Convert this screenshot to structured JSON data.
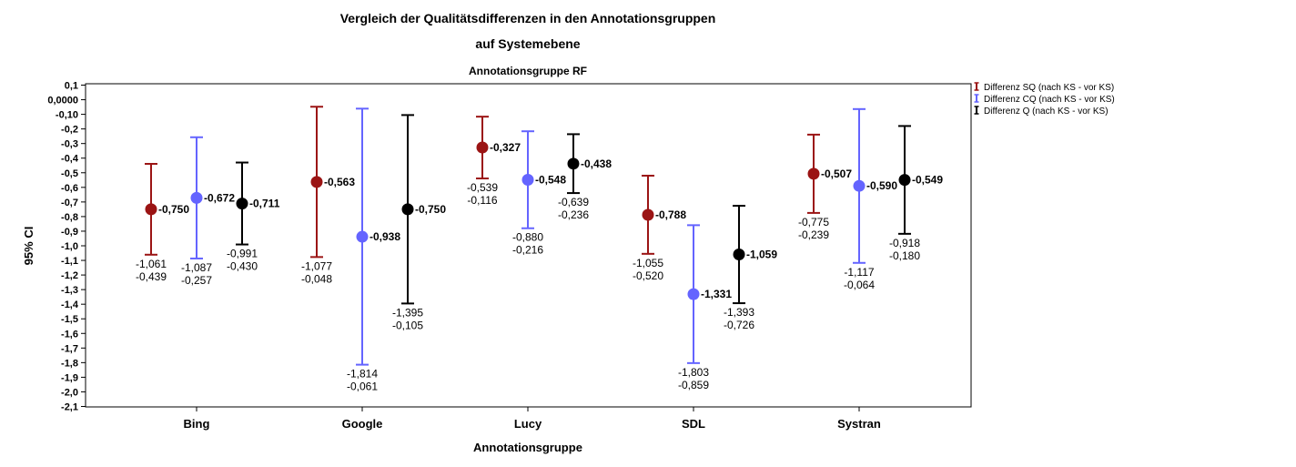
{
  "chart_data": {
    "type": "errorbar",
    "title": "Vergleich der Qualitätsdifferenzen in den Annotationsgruppen",
    "title_line2": "auf Systemebene",
    "subtitle": "Annotationsgruppe RF",
    "xlabel": "Annotationsgruppe",
    "ylabel": "95% CI",
    "ylim": [
      -2.1,
      0.1
    ],
    "yticks": [
      {
        "v": 0.1,
        "label": "0,1"
      },
      {
        "v": 0.0,
        "label": "0,0000"
      },
      {
        "v": -0.1,
        "label": "-0,10"
      },
      {
        "v": -0.2,
        "label": "-0,2"
      },
      {
        "v": -0.3,
        "label": "-0,3"
      },
      {
        "v": -0.4,
        "label": "-0,4"
      },
      {
        "v": -0.5,
        "label": "-0,5"
      },
      {
        "v": -0.6,
        "label": "-0,6"
      },
      {
        "v": -0.7,
        "label": "-0,7"
      },
      {
        "v": -0.8,
        "label": "-0,8"
      },
      {
        "v": -0.9,
        "label": "-0,9"
      },
      {
        "v": -1.0,
        "label": "-1,0"
      },
      {
        "v": -1.1,
        "label": "-1,1"
      },
      {
        "v": -1.2,
        "label": "-1,2"
      },
      {
        "v": -1.3,
        "label": "-1,3"
      },
      {
        "v": -1.4,
        "label": "-1,4"
      },
      {
        "v": -1.5,
        "label": "-1,5"
      },
      {
        "v": -1.6,
        "label": "-1,6"
      },
      {
        "v": -1.7,
        "label": "-1,7"
      },
      {
        "v": -1.8,
        "label": "-1,8"
      },
      {
        "v": -1.9,
        "label": "-1,9"
      },
      {
        "v": -2.0,
        "label": "-2,0"
      },
      {
        "v": -2.1,
        "label": "-2,1"
      }
    ],
    "categories": [
      "Bing",
      "Google",
      "Lucy",
      "SDL",
      "Systran"
    ],
    "legend_position": "right",
    "series": [
      {
        "name": "Differenz SQ (nach KS - vor KS)",
        "color": "#9b1414",
        "points": [
          {
            "mean": -0.75,
            "lower": -1.061,
            "upper": -0.439,
            "mean_label": "-0,750",
            "lower_label": "-1,061",
            "upper_label": "-0,439"
          },
          {
            "mean": -0.563,
            "lower": -1.077,
            "upper": -0.048,
            "mean_label": "-0,563",
            "lower_label": "-1,077",
            "upper_label": "-0,048"
          },
          {
            "mean": -0.327,
            "lower": -0.539,
            "upper": -0.116,
            "mean_label": "-0,327",
            "lower_label": "-0,539",
            "upper_label": "-0,116"
          },
          {
            "mean": -0.788,
            "lower": -1.055,
            "upper": -0.52,
            "mean_label": "-0,788",
            "lower_label": "-1,055",
            "upper_label": "-0,520"
          },
          {
            "mean": -0.507,
            "lower": -0.775,
            "upper": -0.239,
            "mean_label": "-0,507",
            "lower_label": "-0,775",
            "upper_label": "-0,239"
          }
        ]
      },
      {
        "name": "Differenz CQ (nach KS - vor KS)",
        "color": "#6464ff",
        "points": [
          {
            "mean": -0.672,
            "lower": -1.087,
            "upper": -0.257,
            "mean_label": "-0,672",
            "lower_label": "-1,087",
            "upper_label": "-0,257"
          },
          {
            "mean": -0.938,
            "lower": -1.814,
            "upper": -0.061,
            "mean_label": "-0,938",
            "lower_label": "-1,814",
            "upper_label": "-0,061"
          },
          {
            "mean": -0.548,
            "lower": -0.88,
            "upper": -0.216,
            "mean_label": "-0,548",
            "lower_label": "-0,880",
            "upper_label": "-0,216"
          },
          {
            "mean": -1.331,
            "lower": -1.803,
            "upper": -0.859,
            "mean_label": "-1,331",
            "lower_label": "-1,803",
            "upper_label": "-0,859"
          },
          {
            "mean": -0.59,
            "lower": -1.117,
            "upper": -0.064,
            "mean_label": "-0,590",
            "lower_label": "-1,117",
            "upper_label": "-0,064"
          }
        ]
      },
      {
        "name": "Differenz Q (nach KS - vor KS)",
        "color": "#000000",
        "points": [
          {
            "mean": -0.711,
            "lower": -0.991,
            "upper": -0.43,
            "mean_label": "-0,711",
            "lower_label": "-0,991",
            "upper_label": "-0,430"
          },
          {
            "mean": -0.75,
            "lower": -1.395,
            "upper": -0.105,
            "mean_label": "-0,750",
            "lower_label": "-1,395",
            "upper_label": "-0,105"
          },
          {
            "mean": -0.438,
            "lower": -0.639,
            "upper": -0.236,
            "mean_label": "-0,438",
            "lower_label": "-0,639",
            "upper_label": "-0,236"
          },
          {
            "mean": -1.059,
            "lower": -1.393,
            "upper": -0.726,
            "mean_label": "-1,059",
            "lower_label": "-1,393",
            "upper_label": "-0,726"
          },
          {
            "mean": -0.549,
            "lower": -0.918,
            "upper": -0.18,
            "mean_label": "-0,549",
            "lower_label": "-0,918",
            "upper_label": "-0,180"
          }
        ]
      }
    ]
  }
}
